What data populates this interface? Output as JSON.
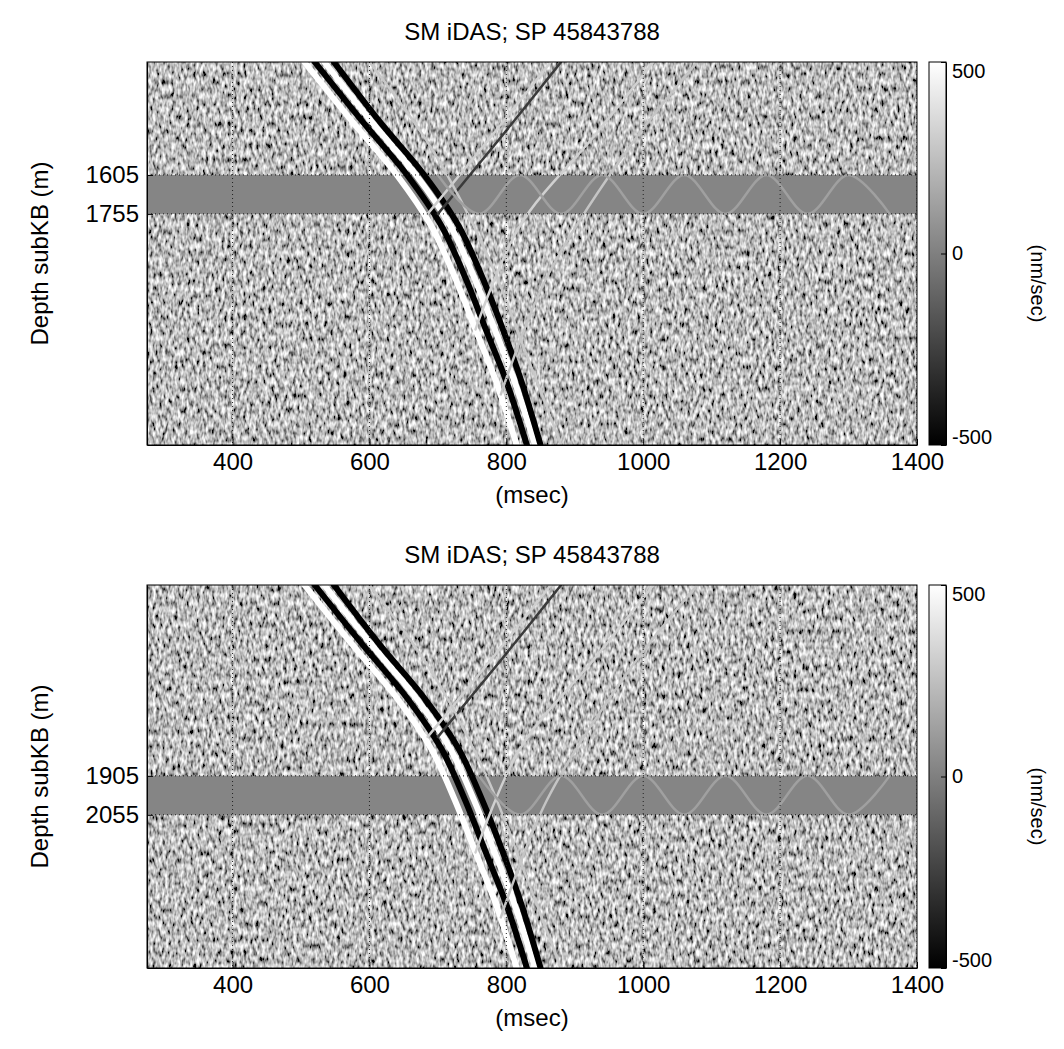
{
  "chart_data": [
    {
      "type": "line",
      "title": "SM iDAS; SP 45843788",
      "x_label": "(msec)",
      "y_label": "Depth subKB (m)",
      "xlim": [
        275,
        1400
      ],
      "xticks": [
        400,
        600,
        800,
        1000,
        1200,
        1400
      ],
      "ylim": [
        1170,
        2645
      ],
      "yticks": [
        1605,
        1755
      ],
      "grid": true,
      "muted_interval": [
        1605,
        1755
      ],
      "series": [
        {
          "color": "#ffffff",
          "x": [
            505,
            575,
            640,
            690,
            725,
            755,
            785,
            815
          ],
          "values": [
            1170,
            1400,
            1605,
            1800,
            2000,
            2200,
            2400,
            2645
          ]
        },
        {
          "color": "#000000",
          "x": [
            520,
            590,
            655,
            705,
            740,
            770,
            800,
            830
          ],
          "values": [
            1170,
            1400,
            1605,
            1800,
            2000,
            2200,
            2400,
            2645
          ]
        },
        {
          "color": "#ffffff",
          "x": [
            534,
            603,
            668,
            718,
            753,
            783,
            812,
            842
          ],
          "values": [
            1170,
            1400,
            1605,
            1800,
            2000,
            2200,
            2400,
            2645
          ]
        },
        {
          "color": "#000000",
          "x": [
            548,
            615,
            680,
            730,
            765,
            795,
            822,
            850
          ],
          "values": [
            1170,
            1400,
            1605,
            1800,
            2000,
            2200,
            2400,
            2645
          ]
        },
        {
          "color": "#d0d0d0",
          "x": [
            685,
            780,
            865
          ],
          "values": [
            1755,
            1450,
            1170
          ]
        },
        {
          "color": "#3a3a3a",
          "x": [
            700,
            795,
            880
          ],
          "values": [
            1755,
            1450,
            1170
          ]
        },
        {
          "color": "#d0d0d0",
          "x": [
            755,
            820,
            930,
            1015
          ],
          "values": [
            2200,
            1800,
            1450,
            1170
          ]
        },
        {
          "color": "#c4c4c4",
          "x": [
            792,
            859,
            979,
            1079
          ],
          "values": [
            2450,
            2000,
            1500,
            1170
          ]
        },
        {
          "color": "#c8c8c8",
          "x": [
            600,
            690,
            770,
            830,
            880
          ],
          "values": [
            1170,
            1500,
            1900,
            2300,
            2645
          ]
        },
        {
          "color": "#a0a0a0",
          "x": [
            700,
            760,
            820,
            880,
            940,
            1000,
            1060,
            1120,
            1180,
            1240,
            1300,
            1360
          ],
          "values": [
            1605,
            1755,
            1605,
            1755,
            1605,
            1755,
            1605,
            1755,
            1605,
            1755,
            1605,
            1755
          ]
        }
      ],
      "colorbar": {
        "range": [
          -500,
          500
        ],
        "ticks": [
          -500,
          0,
          500
        ],
        "label": "(nm/sec)",
        "colors": [
          "#000000",
          "#ffffff"
        ]
      }
    },
    {
      "type": "line",
      "title": "SM iDAS; SP 45843788",
      "x_label": "(msec)",
      "y_label": "Depth subKB (m)",
      "xlim": [
        275,
        1400
      ],
      "xticks": [
        400,
        600,
        800,
        1000,
        1200,
        1400
      ],
      "ylim": [
        1170,
        2645
      ],
      "yticks": [
        1905,
        2055
      ],
      "grid": true,
      "muted_interval": [
        1905,
        2055
      ],
      "series": [
        {
          "color": "#ffffff",
          "x": [
            505,
            575,
            640,
            690,
            725,
            755,
            785,
            815
          ],
          "values": [
            1170,
            1400,
            1605,
            1800,
            2000,
            2200,
            2400,
            2645
          ]
        },
        {
          "color": "#000000",
          "x": [
            520,
            590,
            655,
            705,
            740,
            770,
            800,
            830
          ],
          "values": [
            1170,
            1400,
            1605,
            1800,
            2000,
            2200,
            2400,
            2645
          ]
        },
        {
          "color": "#ffffff",
          "x": [
            534,
            603,
            668,
            718,
            753,
            783,
            812,
            842
          ],
          "values": [
            1170,
            1400,
            1605,
            1800,
            2000,
            2200,
            2400,
            2645
          ]
        },
        {
          "color": "#000000",
          "x": [
            548,
            615,
            680,
            730,
            765,
            795,
            822,
            850
          ],
          "values": [
            1170,
            1400,
            1605,
            1800,
            2000,
            2200,
            2400,
            2645
          ]
        },
        {
          "color": "#d0d0d0",
          "x": [
            685,
            780,
            865
          ],
          "values": [
            1755,
            1450,
            1170
          ]
        },
        {
          "color": "#3a3a3a",
          "x": [
            700,
            795,
            880
          ],
          "values": [
            1755,
            1450,
            1170
          ]
        },
        {
          "color": "#d0d0d0",
          "x": [
            755,
            820,
            930,
            1015
          ],
          "values": [
            2200,
            1800,
            1450,
            1170
          ]
        },
        {
          "color": "#c4c4c4",
          "x": [
            792,
            859,
            979,
            1079
          ],
          "values": [
            2450,
            2000,
            1500,
            1170
          ]
        },
        {
          "color": "#c8c8c8",
          "x": [
            600,
            690,
            770,
            830,
            880
          ],
          "values": [
            1170,
            1500,
            1900,
            2300,
            2645
          ]
        },
        {
          "color": "#a0a0a0",
          "x": [
            760,
            820,
            880,
            940,
            1000,
            1060,
            1120,
            1180,
            1240,
            1300,
            1360
          ],
          "values": [
            1905,
            2055,
            1905,
            2055,
            1905,
            2055,
            1905,
            2055,
            1905,
            2055,
            1905
          ]
        }
      ],
      "colorbar": {
        "range": [
          -500,
          500
        ],
        "ticks": [
          -500,
          0,
          500
        ],
        "label": "(nm/sec)",
        "colors": [
          "#000000",
          "#ffffff"
        ]
      }
    }
  ]
}
